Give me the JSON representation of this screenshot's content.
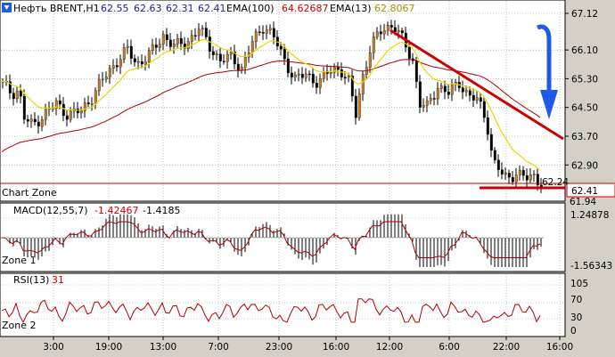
{
  "header": {
    "symbol": "Нефть BRENT,H1",
    "ohlc": [
      "62.55",
      "62.63",
      "62.31",
      "62.41"
    ],
    "ema100_label": "EMA(100)",
    "ema100_value": "64.62687",
    "ema13_label": "EMA(13)",
    "ema13_value": "62.8067"
  },
  "zones": {
    "chart_zone": "Chart Zone",
    "zone1": "Zone 1",
    "zone2": "Zone 2"
  },
  "macd": {
    "label": "MACD(12,55,7)",
    "value1": "-1.42467",
    "value2": "-1.4185",
    "scale_top": "1.24878",
    "scale_bottom": "-1.56343"
  },
  "rsi": {
    "label": "RSI(13)",
    "value": "31",
    "levels": [
      "105",
      "70",
      "30",
      "0"
    ]
  },
  "price": {
    "current": "62.41",
    "faded_tag": "62.24",
    "cut_tick": "61.94"
  },
  "colors": {
    "background": "#ffffff",
    "frame": "#d4d0c8",
    "bull_candle": "#c87d2a",
    "bear_candle": "#000000",
    "ema13": "#e8d800",
    "ema100": "#b00000",
    "trendline": "#cc0000",
    "arrow": "#1e5ae6",
    "rsi_line": "#b00000",
    "signal_line": "#b00000"
  },
  "chart_data": {
    "type": "line",
    "price_axis": [
      "67.12",
      "66.10",
      "65.30",
      "64.50",
      "63.70",
      "62.90"
    ],
    "time_axis": [
      "3:00",
      "19:00",
      "13:00",
      "7:00",
      "23:00",
      "16:00",
      "12:00",
      "6:00",
      "22:00",
      "16:00"
    ],
    "anchors": [
      [
        0,
        65.2
      ],
      [
        12,
        64.9
      ],
      [
        20,
        65.0
      ],
      [
        26,
        64.2
      ],
      [
        35,
        64.0
      ],
      [
        48,
        64.3
      ],
      [
        62,
        64.6
      ],
      [
        75,
        64.3
      ],
      [
        90,
        64.4
      ],
      [
        102,
        64.8
      ],
      [
        115,
        65.3
      ],
      [
        130,
        65.8
      ],
      [
        142,
        66.1
      ],
      [
        152,
        65.7
      ],
      [
        168,
        66.0
      ],
      [
        182,
        66.5
      ],
      [
        195,
        66.2
      ],
      [
        208,
        66.3
      ],
      [
        222,
        66.7
      ],
      [
        234,
        66.2
      ],
      [
        246,
        65.8
      ],
      [
        258,
        65.9
      ],
      [
        270,
        65.6
      ],
      [
        282,
        66.3
      ],
      [
        295,
        66.8
      ],
      [
        305,
        66.5
      ],
      [
        318,
        65.8
      ],
      [
        330,
        65.3
      ],
      [
        342,
        65.4
      ],
      [
        356,
        65.2
      ],
      [
        368,
        65.5
      ],
      [
        380,
        65.6
      ],
      [
        390,
        65.2
      ],
      [
        398,
        64.3
      ],
      [
        405,
        65.3
      ],
      [
        415,
        66.2
      ],
      [
        428,
        66.7
      ],
      [
        440,
        66.8
      ],
      [
        452,
        66.3
      ],
      [
        462,
        65.8
      ],
      [
        470,
        64.6
      ],
      [
        478,
        64.5
      ],
      [
        490,
        65.1
      ],
      [
        502,
        64.9
      ],
      [
        515,
        65.2
      ],
      [
        525,
        64.8
      ],
      [
        535,
        64.7
      ],
      [
        545,
        64.1
      ],
      [
        552,
        63.0
      ],
      [
        560,
        62.7
      ],
      [
        568,
        62.5
      ],
      [
        578,
        62.7
      ],
      [
        588,
        62.5
      ],
      [
        597,
        62.6
      ],
      [
        605,
        62.41
      ]
    ]
  }
}
